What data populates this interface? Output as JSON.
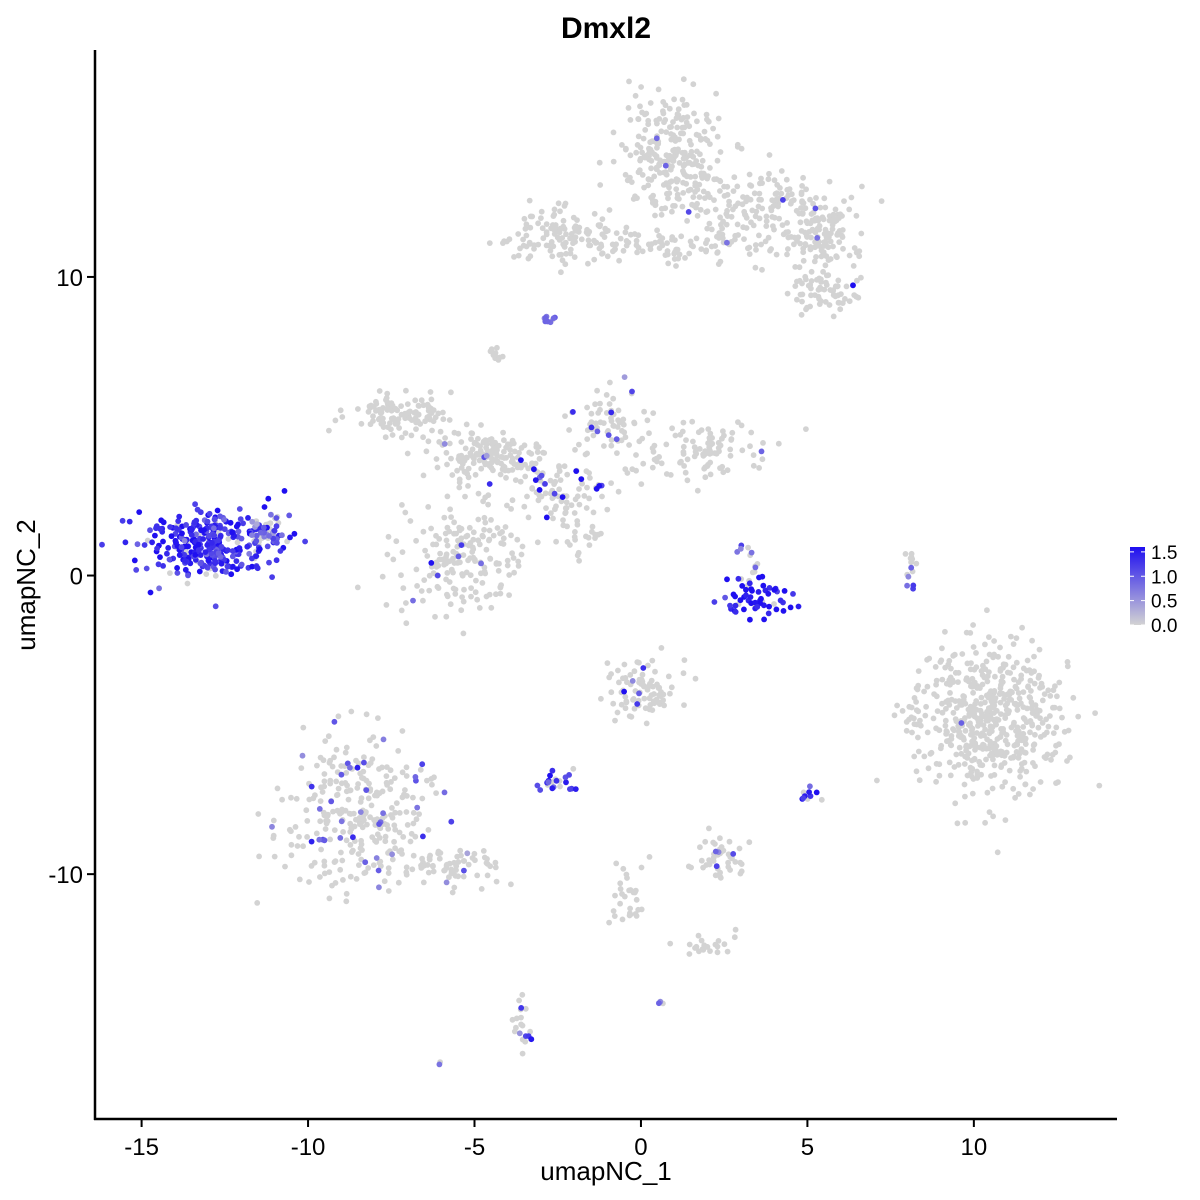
{
  "chart_data": {
    "type": "scatter",
    "title": "Dmxl2",
    "xlabel": "umapNC_1",
    "ylabel": "umapNC_2",
    "xlim": [
      -16.4,
      14.3
    ],
    "ylim": [
      -18.2,
      17.6
    ],
    "x_ticks": [
      -15,
      -10,
      -5,
      0,
      5,
      10
    ],
    "x_tick_labels": [
      "-15",
      "-10",
      "-5",
      "0",
      "5",
      "10"
    ],
    "y_ticks": [
      -10,
      0,
      10
    ],
    "y_tick_labels": [
      "-10",
      "0",
      "10"
    ],
    "grid": false,
    "legend": {
      "placement": "right",
      "type": "colorbar",
      "labels": [
        "1.5",
        "1.0",
        "0.5",
        "0.0"
      ],
      "values": [
        1.5,
        1.0,
        0.5,
        0.0
      ],
      "low_color": "#d3d3d3",
      "high_color": "#1f0ff0",
      "max_value": 1.6
    },
    "colors": {
      "low": "#d3d3d3",
      "high": "#1f0ff0"
    },
    "clusters": [
      {
        "x": 1.0,
        "y": 14.0,
        "sx": 0.75,
        "sy": 1.1,
        "n": 260,
        "expr_frac": 0.01,
        "expr_level": 0.6
      },
      {
        "x": 3.6,
        "y": 12.2,
        "sx": 1.2,
        "sy": 0.8,
        "n": 190,
        "expr_frac": 0.02,
        "expr_level": 0.6
      },
      {
        "x": 5.4,
        "y": 11.4,
        "sx": 0.5,
        "sy": 0.45,
        "n": 90,
        "expr_frac": 0.02,
        "expr_level": 0.6
      },
      {
        "x": 5.6,
        "y": 9.6,
        "sx": 0.5,
        "sy": 0.35,
        "n": 70,
        "expr_frac": 0.03,
        "expr_level": 0.7
      },
      {
        "x": -2.3,
        "y": 11.4,
        "sx": 0.8,
        "sy": 0.45,
        "n": 120,
        "expr_frac": 0.0,
        "expr_level": 0.0
      },
      {
        "x": 0.2,
        "y": 11.0,
        "sx": 1.2,
        "sy": 0.25,
        "n": 60,
        "expr_frac": 0.0,
        "expr_level": 0.0
      },
      {
        "x": -2.8,
        "y": 8.6,
        "sx": 0.1,
        "sy": 0.1,
        "n": 10,
        "expr_frac": 0.8,
        "expr_level": 0.7
      },
      {
        "x": -7.2,
        "y": 5.4,
        "sx": 0.8,
        "sy": 0.35,
        "n": 110,
        "expr_frac": 0.0,
        "expr_level": 0.0
      },
      {
        "x": -4.6,
        "y": 4.0,
        "sx": 1.0,
        "sy": 0.4,
        "n": 160,
        "expr_frac": 0.03,
        "expr_level": 0.6
      },
      {
        "x": -4.3,
        "y": 7.3,
        "sx": 0.15,
        "sy": 0.15,
        "n": 12,
        "expr_frac": 0.0,
        "expr_level": 0.0
      },
      {
        "x": -2.4,
        "y": 3.0,
        "sx": 0.7,
        "sy": 0.5,
        "n": 80,
        "expr_frac": 0.15,
        "expr_level": 0.9
      },
      {
        "x": -1.0,
        "y": 5.0,
        "sx": 0.6,
        "sy": 0.6,
        "n": 70,
        "expr_frac": 0.08,
        "expr_level": 0.7
      },
      {
        "x": 1.8,
        "y": 4.2,
        "sx": 1.0,
        "sy": 0.5,
        "n": 100,
        "expr_frac": 0.02,
        "expr_level": 0.6
      },
      {
        "x": -5.3,
        "y": 0.6,
        "sx": 1.0,
        "sy": 1.0,
        "n": 200,
        "expr_frac": 0.04,
        "expr_level": 0.7
      },
      {
        "x": -1.8,
        "y": 1.2,
        "sx": 0.35,
        "sy": 0.35,
        "n": 25,
        "expr_frac": 0.0,
        "expr_level": 0.0
      },
      {
        "x": -13.0,
        "y": 1.1,
        "sx": 0.95,
        "sy": 0.55,
        "n": 330,
        "expr_frac": 0.92,
        "expr_level": 0.85
      },
      {
        "x": -11.3,
        "y": 1.4,
        "sx": 0.35,
        "sy": 0.25,
        "n": 50,
        "expr_frac": 0.6,
        "expr_level": 0.5
      },
      {
        "x": 3.4,
        "y": -0.8,
        "sx": 0.65,
        "sy": 0.3,
        "n": 55,
        "expr_frac": 0.9,
        "expr_level": 1.0
      },
      {
        "x": 3.2,
        "y": 0.4,
        "sx": 0.2,
        "sy": 0.4,
        "n": 15,
        "expr_frac": 0.3,
        "expr_level": 0.7
      },
      {
        "x": 8.1,
        "y": 0.2,
        "sx": 0.15,
        "sy": 0.4,
        "n": 15,
        "expr_frac": 0.1,
        "expr_level": 0.5
      },
      {
        "x": 10.6,
        "y": -4.8,
        "sx": 1.05,
        "sy": 1.25,
        "n": 520,
        "expr_frac": 0.005,
        "expr_level": 0.5
      },
      {
        "x": 8.3,
        "y": -4.5,
        "sx": 0.2,
        "sy": 0.4,
        "n": 18,
        "expr_frac": 0.0,
        "expr_level": 0.0
      },
      {
        "x": -8.5,
        "y": -7.9,
        "sx": 1.1,
        "sy": 1.25,
        "n": 300,
        "expr_frac": 0.12,
        "expr_level": 0.6
      },
      {
        "x": -5.6,
        "y": -9.8,
        "sx": 0.9,
        "sy": 0.35,
        "n": 70,
        "expr_frac": 0.05,
        "expr_level": 0.5
      },
      {
        "x": 0.0,
        "y": -3.8,
        "sx": 0.55,
        "sy": 0.5,
        "n": 90,
        "expr_frac": 0.08,
        "expr_level": 0.7
      },
      {
        "x": -2.5,
        "y": -6.9,
        "sx": 0.25,
        "sy": 0.2,
        "n": 22,
        "expr_frac": 0.55,
        "expr_level": 0.8
      },
      {
        "x": 2.4,
        "y": -9.4,
        "sx": 0.45,
        "sy": 0.35,
        "n": 45,
        "expr_frac": 0.1,
        "expr_level": 0.5
      },
      {
        "x": 5.0,
        "y": -7.3,
        "sx": 0.12,
        "sy": 0.12,
        "n": 10,
        "expr_frac": 0.8,
        "expr_level": 0.8
      },
      {
        "x": -0.3,
        "y": -10.8,
        "sx": 0.3,
        "sy": 0.6,
        "n": 30,
        "expr_frac": 0.0,
        "expr_level": 0.0
      },
      {
        "x": 1.9,
        "y": -12.4,
        "sx": 0.4,
        "sy": 0.2,
        "n": 22,
        "expr_frac": 0.05,
        "expr_level": 0.5
      },
      {
        "x": -3.6,
        "y": -15.0,
        "sx": 0.15,
        "sy": 0.5,
        "n": 20,
        "expr_frac": 0.35,
        "expr_level": 0.6
      },
      {
        "x": 0.6,
        "y": -14.3,
        "sx": 0.05,
        "sy": 0.05,
        "n": 3,
        "expr_frac": 0.7,
        "expr_level": 0.5
      },
      {
        "x": -6.0,
        "y": -16.3,
        "sx": 0.05,
        "sy": 0.05,
        "n": 2,
        "expr_frac": 0.5,
        "expr_level": 0.5
      }
    ]
  }
}
